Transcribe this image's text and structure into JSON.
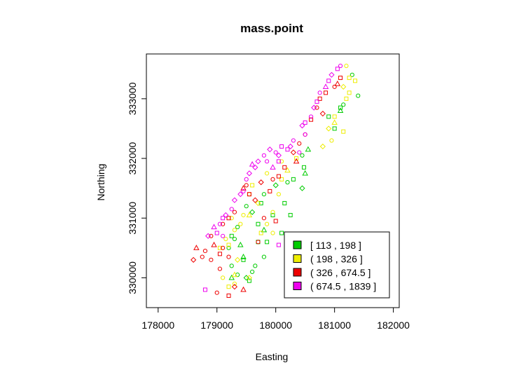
{
  "chart_data": {
    "type": "scatter",
    "title": "mass.point",
    "xlabel": "Easting",
    "ylabel": "Northing",
    "xlim": [
      177800,
      182100
    ],
    "ylim": [
      329500,
      333750
    ],
    "xticks": [
      178000,
      179000,
      180000,
      181000,
      182000
    ],
    "yticks": [
      330000,
      331000,
      332000,
      333000
    ],
    "xtick_labels": [
      "178000",
      "179000",
      "180000",
      "181000",
      "182000"
    ],
    "ytick_labels": [
      "330000",
      "331000",
      "332000",
      "333000"
    ],
    "legend_position": "bottom-right",
    "series": [
      {
        "name": "[ 113 , 198 ]",
        "color": "#00cc00",
        "points": [
          [
            181100,
            332850,
            "square"
          ],
          [
            181400,
            333050,
            "circle"
          ],
          [
            181100,
            332800,
            "triangle"
          ],
          [
            180900,
            332700,
            "square"
          ],
          [
            181000,
            332500,
            "square"
          ],
          [
            180550,
            332150,
            "triangle"
          ],
          [
            180450,
            332050,
            "circle"
          ],
          [
            180480,
            331850,
            "square"
          ],
          [
            180500,
            331750,
            "triangle"
          ],
          [
            180300,
            331650,
            "square"
          ],
          [
            180450,
            331500,
            "diamond"
          ],
          [
            180200,
            331600,
            "circle"
          ],
          [
            180000,
            331550,
            "diamond"
          ],
          [
            180150,
            331250,
            "square"
          ],
          [
            179800,
            331400,
            "circle"
          ],
          [
            179950,
            331050,
            "square"
          ],
          [
            180250,
            331050,
            "square"
          ],
          [
            179700,
            330900,
            "square"
          ],
          [
            179750,
            331250,
            "square"
          ],
          [
            179600,
            331100,
            "diamond"
          ],
          [
            180100,
            330750,
            "square"
          ],
          [
            179850,
            330600,
            "square"
          ],
          [
            179500,
            331200,
            "circle"
          ],
          [
            179350,
            330850,
            "circle"
          ],
          [
            179250,
            330700,
            "square"
          ],
          [
            179400,
            330550,
            "triangle"
          ],
          [
            179200,
            330500,
            "circle"
          ],
          [
            179450,
            330350,
            "triangle"
          ],
          [
            179250,
            330200,
            "circle"
          ],
          [
            179350,
            330050,
            "circle"
          ],
          [
            179250,
            330000,
            "triangle"
          ],
          [
            179600,
            330100,
            "circle"
          ],
          [
            179550,
            329950,
            "square"
          ],
          [
            179700,
            330600,
            "square"
          ],
          [
            179800,
            330350,
            "circle"
          ],
          [
            179500,
            330000,
            "diamond"
          ],
          [
            179650,
            330200,
            "circle"
          ],
          [
            179450,
            330300,
            "square"
          ],
          [
            179300,
            330650,
            "circle"
          ],
          [
            179800,
            330800,
            "triangle"
          ],
          [
            181300,
            333400,
            "circle"
          ],
          [
            181150,
            332900,
            "circle"
          ]
        ]
      },
      {
        "name": "( 198 , 326 ]",
        "color": "#eeee00",
        "points": [
          [
            181200,
            333550,
            "circle"
          ],
          [
            181250,
            333350,
            "square"
          ],
          [
            181350,
            333300,
            "square"
          ],
          [
            181250,
            333100,
            "square"
          ],
          [
            181150,
            333200,
            "diamond"
          ],
          [
            181200,
            333000,
            "square"
          ],
          [
            181000,
            332700,
            "square"
          ],
          [
            181000,
            332600,
            "triangle"
          ],
          [
            180900,
            332500,
            "diamond"
          ],
          [
            181150,
            332450,
            "square"
          ],
          [
            180950,
            332300,
            "circle"
          ],
          [
            180800,
            332200,
            "diamond"
          ],
          [
            180350,
            332000,
            "square"
          ],
          [
            180100,
            331950,
            "circle"
          ],
          [
            180200,
            331800,
            "triangle"
          ],
          [
            180100,
            331650,
            "square"
          ],
          [
            179850,
            331750,
            "circle"
          ],
          [
            180050,
            331400,
            "circle"
          ],
          [
            179600,
            331550,
            "square"
          ],
          [
            179550,
            331400,
            "circle"
          ],
          [
            179700,
            331250,
            "diamond"
          ],
          [
            179550,
            331050,
            "triangle"
          ],
          [
            179950,
            331100,
            "circle"
          ],
          [
            179850,
            330900,
            "circle"
          ],
          [
            179750,
            330750,
            "square"
          ],
          [
            179950,
            330750,
            "circle"
          ],
          [
            179400,
            330900,
            "circle"
          ],
          [
            179300,
            330800,
            "circle"
          ],
          [
            179150,
            330650,
            "circle"
          ],
          [
            179200,
            330550,
            "square"
          ],
          [
            179050,
            330500,
            "square"
          ],
          [
            179350,
            330300,
            "diamond"
          ],
          [
            179300,
            330050,
            "triangle"
          ],
          [
            179100,
            330000,
            "circle"
          ],
          [
            179300,
            329900,
            "circle"
          ],
          [
            179200,
            329850,
            "square"
          ],
          [
            179550,
            330000,
            "diamond"
          ],
          [
            179450,
            331050,
            "circle"
          ],
          [
            179250,
            331000,
            "circle"
          ]
        ]
      },
      {
        "name": "( 326 , 674.5 ]",
        "color": "#ee0000",
        "points": [
          [
            181100,
            333350,
            "square"
          ],
          [
            181050,
            333250,
            "triangle"
          ],
          [
            181000,
            333200,
            "circle"
          ],
          [
            180850,
            333100,
            "square"
          ],
          [
            180750,
            333000,
            "square"
          ],
          [
            180700,
            332850,
            "circle"
          ],
          [
            180800,
            332750,
            "diamond"
          ],
          [
            180600,
            332650,
            "square"
          ],
          [
            180500,
            332400,
            "circle"
          ],
          [
            180400,
            332250,
            "circle"
          ],
          [
            180300,
            332100,
            "diamond"
          ],
          [
            180350,
            331950,
            "triangle"
          ],
          [
            180150,
            331850,
            "square"
          ],
          [
            180050,
            331700,
            "square"
          ],
          [
            179950,
            331650,
            "circle"
          ],
          [
            179900,
            331450,
            "square"
          ],
          [
            179750,
            331600,
            "diamond"
          ],
          [
            179500,
            331550,
            "circle"
          ],
          [
            179450,
            331500,
            "triangle"
          ],
          [
            179550,
            331400,
            "square"
          ],
          [
            179300,
            331100,
            "circle"
          ],
          [
            179200,
            331000,
            "square"
          ],
          [
            179100,
            330900,
            "circle"
          ],
          [
            178900,
            330700,
            "circle"
          ],
          [
            178950,
            330550,
            "triangle"
          ],
          [
            179100,
            330500,
            "circle"
          ],
          [
            178800,
            330450,
            "circle"
          ],
          [
            178650,
            330500,
            "triangle"
          ],
          [
            178750,
            330350,
            "circle"
          ],
          [
            178600,
            330300,
            "diamond"
          ],
          [
            178900,
            330300,
            "circle"
          ],
          [
            179050,
            330400,
            "square"
          ],
          [
            179200,
            330350,
            "circle"
          ],
          [
            179050,
            330150,
            "circle"
          ],
          [
            179300,
            329850,
            "diamond"
          ],
          [
            179450,
            329800,
            "triangle"
          ],
          [
            179000,
            329750,
            "circle"
          ],
          [
            179200,
            329700,
            "square"
          ],
          [
            179700,
            330600,
            "circle"
          ],
          [
            179800,
            331000,
            "circle"
          ],
          [
            180000,
            330950,
            "square"
          ],
          [
            179650,
            331300,
            "diamond"
          ]
        ]
      },
      {
        "name": "( 674.5 , 1839 ]",
        "color": "#ee00ee",
        "points": [
          [
            181050,
            333500,
            "square"
          ],
          [
            181100,
            333550,
            "circle"
          ],
          [
            180950,
            333400,
            "diamond"
          ],
          [
            180900,
            333300,
            "square"
          ],
          [
            180850,
            333200,
            "triangle"
          ],
          [
            180750,
            333100,
            "circle"
          ],
          [
            180700,
            332950,
            "square"
          ],
          [
            180650,
            332850,
            "diamond"
          ],
          [
            180600,
            332700,
            "circle"
          ],
          [
            180500,
            332600,
            "square"
          ],
          [
            180500,
            332400,
            "circle"
          ],
          [
            180300,
            332300,
            "circle"
          ],
          [
            180250,
            332200,
            "diamond"
          ],
          [
            180100,
            332200,
            "square"
          ],
          [
            180000,
            332100,
            "circle"
          ],
          [
            179900,
            332150,
            "diamond"
          ],
          [
            179800,
            332050,
            "circle"
          ],
          [
            179700,
            331950,
            "diamond"
          ],
          [
            179600,
            331900,
            "triangle"
          ],
          [
            179550,
            331750,
            "diamond"
          ],
          [
            179500,
            331650,
            "circle"
          ],
          [
            179400,
            331400,
            "diamond"
          ],
          [
            179300,
            331300,
            "diamond"
          ],
          [
            179250,
            331150,
            "circle"
          ],
          [
            179150,
            331050,
            "diamond"
          ],
          [
            179100,
            331000,
            "square"
          ],
          [
            179050,
            330900,
            "circle"
          ],
          [
            178950,
            330850,
            "triangle"
          ],
          [
            179000,
            330750,
            "square"
          ],
          [
            178850,
            330700,
            "diamond"
          ],
          [
            179100,
            330700,
            "circle"
          ],
          [
            178800,
            329800,
            "square"
          ],
          [
            179450,
            331450,
            "circle"
          ],
          [
            179650,
            331850,
            "diamond"
          ],
          [
            180050,
            332050,
            "diamond"
          ],
          [
            180200,
            332150,
            "square"
          ],
          [
            180450,
            332550,
            "diamond"
          ],
          [
            180050,
            331950,
            "square"
          ],
          [
            180400,
            332100,
            "circle"
          ],
          [
            179850,
            331950,
            "circle"
          ],
          [
            180050,
            330550,
            "square"
          ],
          [
            179950,
            331850,
            "triangle"
          ]
        ]
      }
    ]
  }
}
